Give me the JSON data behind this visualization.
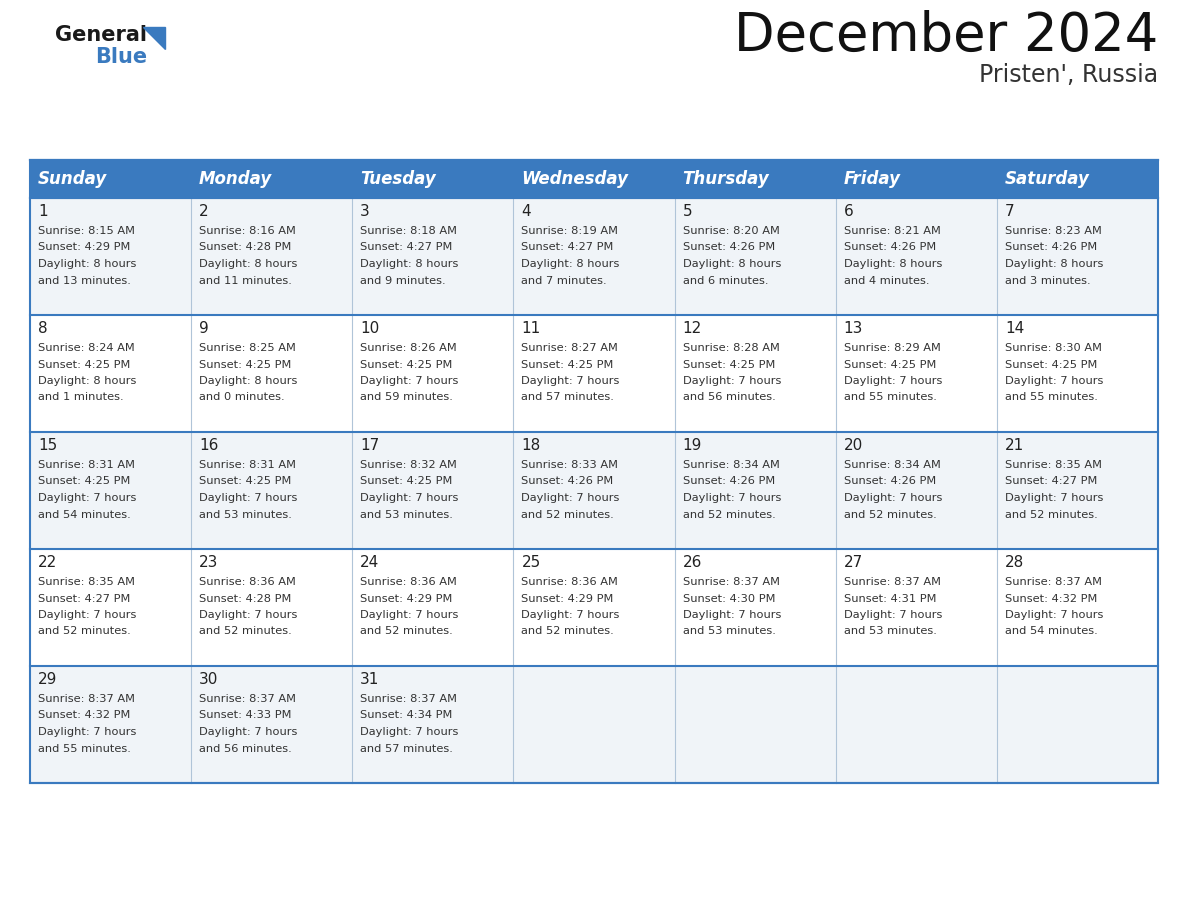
{
  "title": "December 2024",
  "subtitle": "Pristen', Russia",
  "header_color": "#3a7abf",
  "header_text_color": "#ffffff",
  "background_color": "#ffffff",
  "cell_bg_even": "#f0f4f8",
  "cell_bg_odd": "#ffffff",
  "grid_line_color": "#3a7abf",
  "inner_line_color": "#a0b8d0",
  "day_names": [
    "Sunday",
    "Monday",
    "Tuesday",
    "Wednesday",
    "Thursday",
    "Friday",
    "Saturday"
  ],
  "days": [
    {
      "day": 1,
      "col": 0,
      "row": 0,
      "sunrise": "8:15 AM",
      "sunset": "4:29 PM",
      "daylight_hours": 8,
      "daylight_minutes": 13
    },
    {
      "day": 2,
      "col": 1,
      "row": 0,
      "sunrise": "8:16 AM",
      "sunset": "4:28 PM",
      "daylight_hours": 8,
      "daylight_minutes": 11
    },
    {
      "day": 3,
      "col": 2,
      "row": 0,
      "sunrise": "8:18 AM",
      "sunset": "4:27 PM",
      "daylight_hours": 8,
      "daylight_minutes": 9
    },
    {
      "day": 4,
      "col": 3,
      "row": 0,
      "sunrise": "8:19 AM",
      "sunset": "4:27 PM",
      "daylight_hours": 8,
      "daylight_minutes": 7
    },
    {
      "day": 5,
      "col": 4,
      "row": 0,
      "sunrise": "8:20 AM",
      "sunset": "4:26 PM",
      "daylight_hours": 8,
      "daylight_minutes": 6
    },
    {
      "day": 6,
      "col": 5,
      "row": 0,
      "sunrise": "8:21 AM",
      "sunset": "4:26 PM",
      "daylight_hours": 8,
      "daylight_minutes": 4
    },
    {
      "day": 7,
      "col": 6,
      "row": 0,
      "sunrise": "8:23 AM",
      "sunset": "4:26 PM",
      "daylight_hours": 8,
      "daylight_minutes": 3
    },
    {
      "day": 8,
      "col": 0,
      "row": 1,
      "sunrise": "8:24 AM",
      "sunset": "4:25 PM",
      "daylight_hours": 8,
      "daylight_minutes": 1
    },
    {
      "day": 9,
      "col": 1,
      "row": 1,
      "sunrise": "8:25 AM",
      "sunset": "4:25 PM",
      "daylight_hours": 8,
      "daylight_minutes": 0
    },
    {
      "day": 10,
      "col": 2,
      "row": 1,
      "sunrise": "8:26 AM",
      "sunset": "4:25 PM",
      "daylight_hours": 7,
      "daylight_minutes": 59
    },
    {
      "day": 11,
      "col": 3,
      "row": 1,
      "sunrise": "8:27 AM",
      "sunset": "4:25 PM",
      "daylight_hours": 7,
      "daylight_minutes": 57
    },
    {
      "day": 12,
      "col": 4,
      "row": 1,
      "sunrise": "8:28 AM",
      "sunset": "4:25 PM",
      "daylight_hours": 7,
      "daylight_minutes": 56
    },
    {
      "day": 13,
      "col": 5,
      "row": 1,
      "sunrise": "8:29 AM",
      "sunset": "4:25 PM",
      "daylight_hours": 7,
      "daylight_minutes": 55
    },
    {
      "day": 14,
      "col": 6,
      "row": 1,
      "sunrise": "8:30 AM",
      "sunset": "4:25 PM",
      "daylight_hours": 7,
      "daylight_minutes": 55
    },
    {
      "day": 15,
      "col": 0,
      "row": 2,
      "sunrise": "8:31 AM",
      "sunset": "4:25 PM",
      "daylight_hours": 7,
      "daylight_minutes": 54
    },
    {
      "day": 16,
      "col": 1,
      "row": 2,
      "sunrise": "8:31 AM",
      "sunset": "4:25 PM",
      "daylight_hours": 7,
      "daylight_minutes": 53
    },
    {
      "day": 17,
      "col": 2,
      "row": 2,
      "sunrise": "8:32 AM",
      "sunset": "4:25 PM",
      "daylight_hours": 7,
      "daylight_minutes": 53
    },
    {
      "day": 18,
      "col": 3,
      "row": 2,
      "sunrise": "8:33 AM",
      "sunset": "4:26 PM",
      "daylight_hours": 7,
      "daylight_minutes": 52
    },
    {
      "day": 19,
      "col": 4,
      "row": 2,
      "sunrise": "8:34 AM",
      "sunset": "4:26 PM",
      "daylight_hours": 7,
      "daylight_minutes": 52
    },
    {
      "day": 20,
      "col": 5,
      "row": 2,
      "sunrise": "8:34 AM",
      "sunset": "4:26 PM",
      "daylight_hours": 7,
      "daylight_minutes": 52
    },
    {
      "day": 21,
      "col": 6,
      "row": 2,
      "sunrise": "8:35 AM",
      "sunset": "4:27 PM",
      "daylight_hours": 7,
      "daylight_minutes": 52
    },
    {
      "day": 22,
      "col": 0,
      "row": 3,
      "sunrise": "8:35 AM",
      "sunset": "4:27 PM",
      "daylight_hours": 7,
      "daylight_minutes": 52
    },
    {
      "day": 23,
      "col": 1,
      "row": 3,
      "sunrise": "8:36 AM",
      "sunset": "4:28 PM",
      "daylight_hours": 7,
      "daylight_minutes": 52
    },
    {
      "day": 24,
      "col": 2,
      "row": 3,
      "sunrise": "8:36 AM",
      "sunset": "4:29 PM",
      "daylight_hours": 7,
      "daylight_minutes": 52
    },
    {
      "day": 25,
      "col": 3,
      "row": 3,
      "sunrise": "8:36 AM",
      "sunset": "4:29 PM",
      "daylight_hours": 7,
      "daylight_minutes": 52
    },
    {
      "day": 26,
      "col": 4,
      "row": 3,
      "sunrise": "8:37 AM",
      "sunset": "4:30 PM",
      "daylight_hours": 7,
      "daylight_minutes": 53
    },
    {
      "day": 27,
      "col": 5,
      "row": 3,
      "sunrise": "8:37 AM",
      "sunset": "4:31 PM",
      "daylight_hours": 7,
      "daylight_minutes": 53
    },
    {
      "day": 28,
      "col": 6,
      "row": 3,
      "sunrise": "8:37 AM",
      "sunset": "4:32 PM",
      "daylight_hours": 7,
      "daylight_minutes": 54
    },
    {
      "day": 29,
      "col": 0,
      "row": 4,
      "sunrise": "8:37 AM",
      "sunset": "4:32 PM",
      "daylight_hours": 7,
      "daylight_minutes": 55
    },
    {
      "day": 30,
      "col": 1,
      "row": 4,
      "sunrise": "8:37 AM",
      "sunset": "4:33 PM",
      "daylight_hours": 7,
      "daylight_minutes": 56
    },
    {
      "day": 31,
      "col": 2,
      "row": 4,
      "sunrise": "8:37 AM",
      "sunset": "4:34 PM",
      "daylight_hours": 7,
      "daylight_minutes": 57
    }
  ],
  "title_fontsize": 38,
  "subtitle_fontsize": 17,
  "header_fontsize": 12,
  "day_number_fontsize": 11,
  "cell_text_fontsize": 8.2,
  "logo_general_fontsize": 15,
  "logo_blue_fontsize": 15
}
